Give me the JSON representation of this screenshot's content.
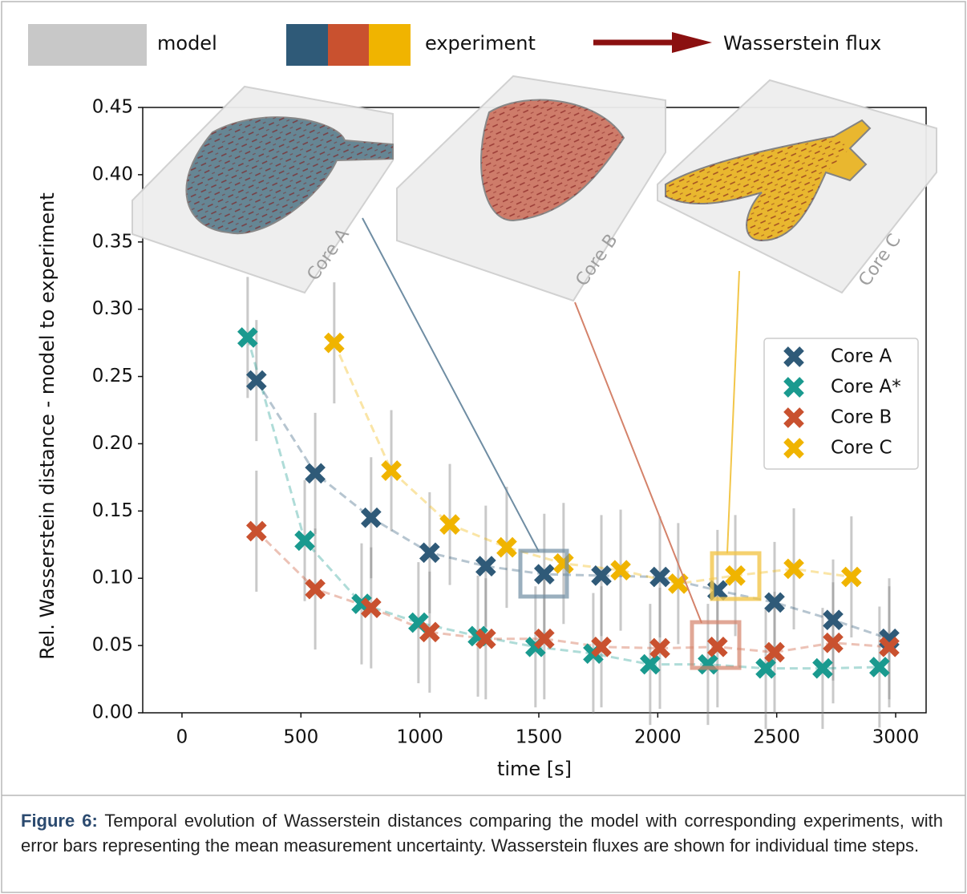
{
  "figure_legend": {
    "model": "model",
    "experiment": "experiment",
    "flux": "Wasserstein flux"
  },
  "insets": [
    "Core A",
    "Core B",
    "Core C"
  ],
  "chart_data": {
    "type": "scatter",
    "xlabel": "time [s]",
    "ylabel": "Rel. Wasserstein distance - model to experiment",
    "xlim": [
      -165,
      3128
    ],
    "ylim": [
      0,
      0.45
    ],
    "xticks": [
      0,
      500,
      1000,
      1500,
      2000,
      2500,
      3000
    ],
    "yticks": [
      {
        "value": 0,
        "label": "0.00"
      },
      {
        "value": 0.05,
        "label": "0.05"
      },
      {
        "value": 0.1,
        "label": "0.10"
      },
      {
        "value": 0.15,
        "label": "0.15"
      },
      {
        "value": 0.2,
        "label": "0.20"
      },
      {
        "value": 0.25,
        "label": "0.25"
      },
      {
        "value": 0.3,
        "label": "0.30"
      },
      {
        "value": 0.35,
        "label": "0.35"
      },
      {
        "value": 0.4,
        "label": "0.40"
      },
      {
        "value": 0.45,
        "label": "0.45"
      }
    ],
    "series": [
      {
        "name": "Core A",
        "color": "#2f5a78",
        "error": 0.045,
        "x": [
          313,
          560,
          795,
          1041,
          1277,
          1523,
          1763,
          2009,
          2251,
          2491,
          2737,
          2973
        ],
        "values": [
          0.247,
          0.178,
          0.145,
          0.119,
          0.109,
          0.103,
          0.102,
          0.101,
          0.091,
          0.082,
          0.069,
          0.055
        ]
      },
      {
        "name": "Core A*",
        "color": "#1a9a8f",
        "error": 0.045,
        "x": [
          276,
          516,
          755,
          994,
          1244,
          1486,
          1729,
          1968,
          2211,
          2454,
          2693,
          2932
        ],
        "values": [
          0.279,
          0.128,
          0.081,
          0.067,
          0.057,
          0.049,
          0.044,
          0.036,
          0.036,
          0.033,
          0.033,
          0.034
        ]
      },
      {
        "name": "Core B",
        "color": "#c9512f",
        "error": 0.045,
        "x": [
          313,
          560,
          795,
          1041,
          1277,
          1523,
          1763,
          2009,
          2251,
          2491,
          2737,
          2973
        ],
        "values": [
          0.135,
          0.092,
          0.078,
          0.06,
          0.055,
          0.055,
          0.049,
          0.048,
          0.049,
          0.045,
          0.052,
          0.049
        ]
      },
      {
        "name": "Core C",
        "color": "#f0b400",
        "error": 0.045,
        "x": [
          640,
          880,
          1126,
          1365,
          1604,
          1844,
          2086,
          2326,
          2572,
          2814
        ],
        "values": [
          0.275,
          0.18,
          0.14,
          0.123,
          0.111,
          0.106,
          0.096,
          0.102,
          0.107,
          0.101
        ]
      }
    ]
  },
  "caption": {
    "label": "Figure 6:",
    "text": "Temporal evolution of Wasserstein distances comparing the model with corresponding experiments, with error bars representing the mean measurement uncertainty. Wasserstein fluxes are shown for individual time steps."
  }
}
